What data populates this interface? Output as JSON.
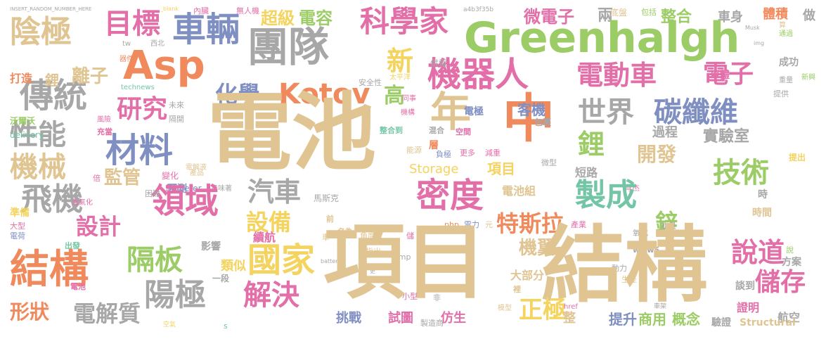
{
  "palette": {
    "tan": "#e0c593",
    "orange": "#f08a5d",
    "gray": "#a7a7a7",
    "green": "#9ccc65",
    "blue": "#7f8fc2",
    "pink": "#e36fa9",
    "teal": "#73c6a5",
    "yellow": "#f4d35e",
    "lavender": "#b7a6d9"
  },
  "words": [
    {
      "text": "INSERT_RANDOM_NUMBER_HERE"
    },
    {
      "text": "_blank"
    },
    {
      "text": "內臟"
    },
    {
      "text": "無人機"
    },
    {
      "text": "電容"
    },
    {
      "text": "超級"
    },
    {
      "text": "科學家"
    },
    {
      "text": "a4b3f35b"
    },
    {
      "text": "微電子"
    },
    {
      "text": "兩"
    },
    {
      "text": "底盤"
    },
    {
      "text": "包括"
    },
    {
      "text": "整合"
    },
    {
      "text": "車身"
    },
    {
      "text": "體積"
    },
    {
      "text": "做"
    },
    {
      "text": "陰極"
    },
    {
      "text": "目標"
    },
    {
      "text": "車輛"
    },
    {
      "text": "團隊"
    },
    {
      "text": "Greenhalgh"
    },
    {
      "text": "Musk"
    },
    {
      "text": "算"
    },
    {
      "text": "通過"
    },
    {
      "text": "img"
    },
    {
      "text": "Asp"
    },
    {
      "text": "機器人"
    },
    {
      "text": "電動車"
    },
    {
      "text": "新"
    },
    {
      "text": "供電"
    },
    {
      "text": "成功"
    },
    {
      "text": "傳統"
    },
    {
      "text": "Kotov"
    },
    {
      "text": "化學"
    },
    {
      "text": "電子"
    },
    {
      "text": "車體"
    },
    {
      "text": "重量"
    },
    {
      "text": "新興"
    },
    {
      "text": "打造"
    },
    {
      "text": "鋰"
    },
    {
      "text": "離子"
    },
    {
      "text": "器件"
    },
    {
      "text": "西北"
    },
    {
      "text": "tw"
    },
    {
      "text": "太平洋"
    },
    {
      "text": "安全性"
    },
    {
      "text": "研究"
    },
    {
      "text": "technews"
    },
    {
      "text": "未來"
    },
    {
      "text": "隔開"
    },
    {
      "text": "性能"
    },
    {
      "text": "材料"
    },
    {
      "text": "電池"
    },
    {
      "text": "年"
    },
    {
      "text": "中"
    },
    {
      "text": "高"
    },
    {
      "text": "世界"
    },
    {
      "text": "碳纖維"
    },
    {
      "text": "提供"
    },
    {
      "text": "沃爾沃"
    },
    {
      "text": "delivery"
    },
    {
      "text": "風險"
    },
    {
      "text": "機構"
    },
    {
      "text": "同事"
    },
    {
      "text": "整合到"
    },
    {
      "text": "混合"
    },
    {
      "text": "層"
    },
    {
      "text": "空間"
    },
    {
      "text": "包裹"
    },
    {
      "text": "電極"
    },
    {
      "text": "客機"
    },
    {
      "text": "過程"
    },
    {
      "text": "實驗室"
    },
    {
      "text": "機械"
    },
    {
      "text": "充當"
    },
    {
      "text": "能源"
    },
    {
      "text": "負極"
    },
    {
      "text": "更多"
    },
    {
      "text": "減重"
    },
    {
      "text": "微型"
    },
    {
      "text": "鋰"
    },
    {
      "text": "開發"
    },
    {
      "text": "提出"
    },
    {
      "text": "Storage"
    },
    {
      "text": "項目"
    },
    {
      "text": "電解液"
    },
    {
      "text": "產品"
    },
    {
      "text": "技術"
    },
    {
      "text": "監管"
    },
    {
      "text": "變化"
    },
    {
      "text": "脂肪"
    },
    {
      "text": "Sorcerer"
    },
    {
      "text": "倍"
    },
    {
      "text": "預測"
    },
    {
      "text": "意味著"
    },
    {
      "text": "短路"
    },
    {
      "text": "肖杰"
    },
    {
      "text": "時"
    },
    {
      "text": "飛機"
    },
    {
      "text": "領域"
    },
    {
      "text": "汽車"
    },
    {
      "text": "密度"
    },
    {
      "text": "電池組"
    },
    {
      "text": "製成"
    },
    {
      "text": "時間"
    },
    {
      "text": "設計"
    },
    {
      "text": "設備"
    },
    {
      "text": "特斯拉"
    },
    {
      "text": "鋅"
    },
    {
      "text": "準備"
    },
    {
      "text": "大型"
    },
    {
      "text": "電荷"
    },
    {
      "text": "電氣化"
    },
    {
      "text": "出發"
    },
    {
      "text": "困難"
    },
    {
      "text": "馬斯克"
    },
    {
      "text": "續航"
    },
    {
      "text": "前"
    },
    {
      "text": "名為"
    },
    {
      "text": "php"
    },
    {
      "text": "產業"
    },
    {
      "text": "電力"
    },
    {
      "text": "元"
    },
    {
      "text": "氧化"
    },
    {
      "text": "能量"
    },
    {
      "text": "結構"
    },
    {
      "text": "隔板"
    },
    {
      "text": "影響"
    },
    {
      "text": "車"
    },
    {
      "text": "角度"
    },
    {
      "text": "儲"
    },
    {
      "text": "機翼"
    },
    {
      "text": "www5"
    },
    {
      "text": "說"
    },
    {
      "text": "說道"
    },
    {
      "text": "國家"
    },
    {
      "text": "指出"
    },
    {
      "text": "amp"
    },
    {
      "text": "battery"
    },
    {
      "text": "更"
    },
    {
      "text": "類似"
    },
    {
      "text": "一段"
    },
    {
      "text": "動力"
    },
    {
      "text": "生產"
    },
    {
      "text": "方案"
    },
    {
      "text": "大部分"
    },
    {
      "text": "裡"
    },
    {
      "text": "儲存"
    },
    {
      "text": "陽極"
    },
    {
      "text": "解決"
    },
    {
      "text": "談到"
    },
    {
      "text": "電池"
    },
    {
      "text": "結構"
    },
    {
      "text": "項目"
    },
    {
      "text": "正極"
    },
    {
      "text": "非"
    },
    {
      "text": "小型"
    },
    {
      "text": "模型"
    },
    {
      "text": "href"
    },
    {
      "text": "車架"
    },
    {
      "text": "證明"
    },
    {
      "text": "航空"
    },
    {
      "text": "形狀"
    },
    {
      "text": "電解質"
    },
    {
      "text": "挑戰"
    },
    {
      "text": "試圖"
    },
    {
      "text": "製造商"
    },
    {
      "text": "仿生"
    },
    {
      "text": "整"
    },
    {
      "text": "提升"
    },
    {
      "text": "商用"
    },
    {
      "text": "概念"
    },
    {
      "text": "驗證"
    },
    {
      "text": "Structural"
    },
    {
      "text": "空氣"
    },
    {
      "text": "s"
    }
  ]
}
